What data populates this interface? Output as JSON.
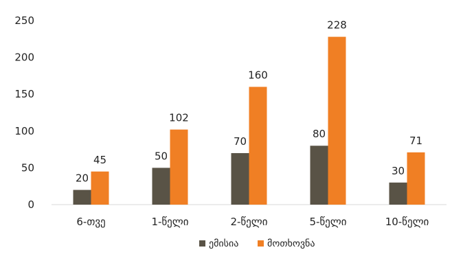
{
  "chart_data": {
    "type": "bar",
    "categories": [
      "6-თვე",
      "1-წელი",
      "2-წელი",
      "5-წელი",
      "10-წელი"
    ],
    "series": [
      {
        "name": "ემისია",
        "values": [
          20,
          50,
          70,
          80,
          30
        ],
        "color": "#595346"
      },
      {
        "name": "მოთხოვნა",
        "values": [
          45,
          102,
          160,
          228,
          71
        ],
        "color": "#F07F24"
      }
    ],
    "ylim": [
      0,
      250
    ],
    "yticks": [
      0,
      50,
      100,
      150,
      200,
      250
    ],
    "grid": false,
    "legend_position": "bottom",
    "title": "",
    "xlabel": "",
    "ylabel": ""
  }
}
